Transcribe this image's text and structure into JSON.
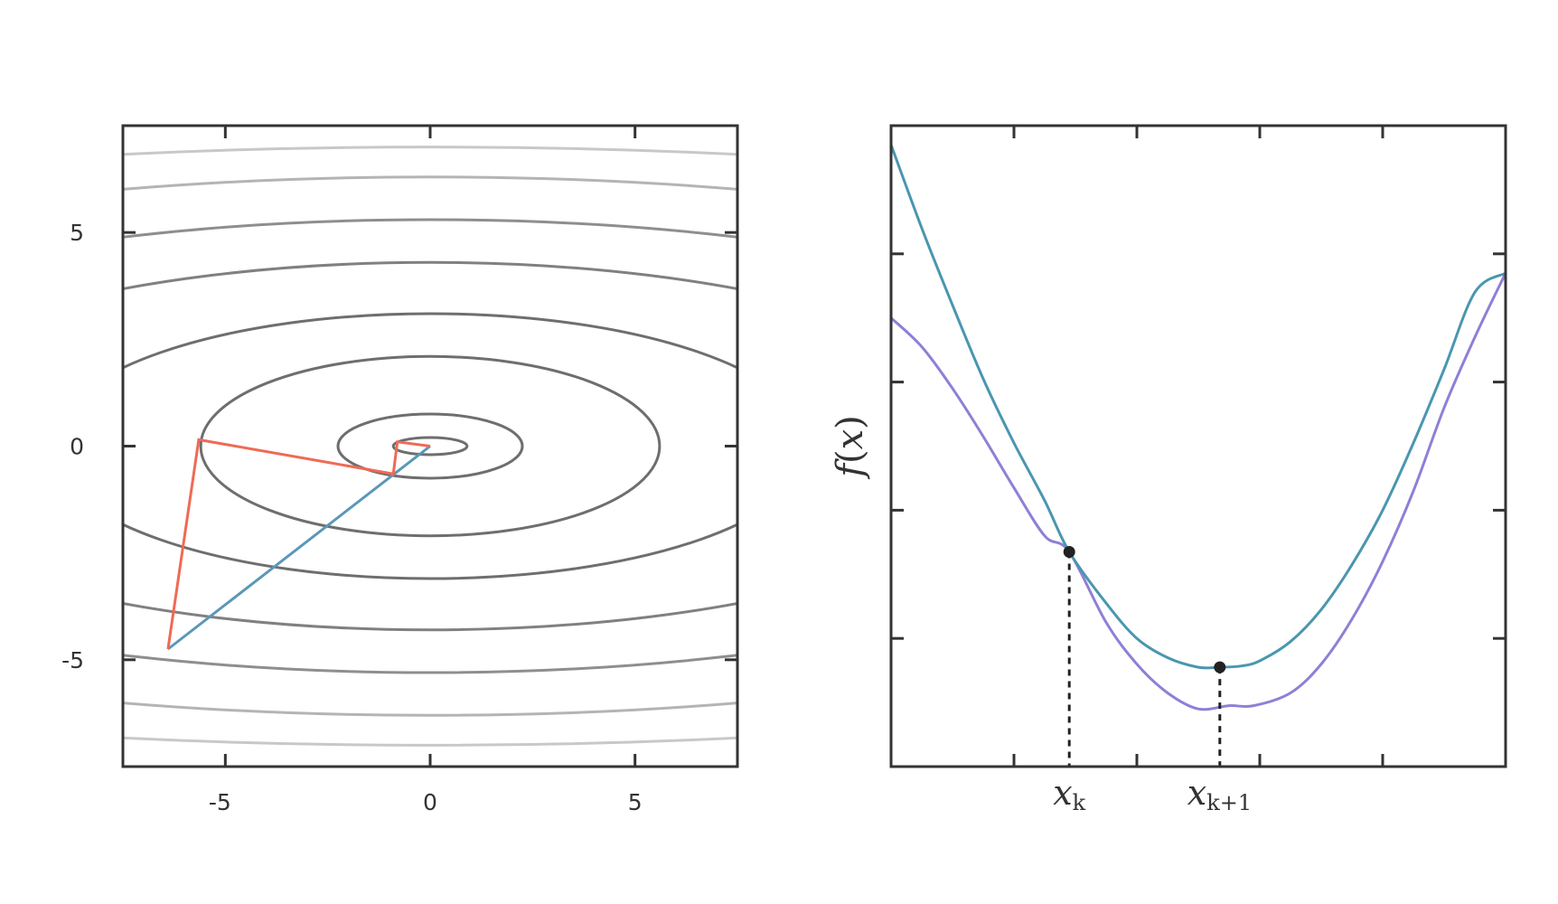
{
  "chart_data": [
    {
      "type": "contour",
      "title": "",
      "xlabel": "",
      "ylabel": "",
      "xlim": [
        -7.5,
        7.5
      ],
      "ylim": [
        -7.5,
        7.5
      ],
      "xticks": [
        -5,
        0,
        5
      ],
      "yticks": [
        5,
        0,
        -5
      ],
      "xtick_labels": [
        "-5",
        "0",
        "5"
      ],
      "ytick_labels": [
        "5",
        "0",
        "-5"
      ],
      "center": [
        0,
        0
      ],
      "contours": [
        {
          "a": 0.9,
          "b": 0.2,
          "color": "#6e6e6e"
        },
        {
          "a": 2.25,
          "b": 0.75,
          "color": "#6e6e6e"
        },
        {
          "a": 5.6,
          "b": 2.1,
          "color": "#6e6e6e"
        },
        {
          "a": 9.3,
          "b": 3.1,
          "color": "#6e6e6e"
        },
        {
          "a": 14.5,
          "b": 4.3,
          "color": "#808080"
        },
        {
          "a": 19.5,
          "b": 5.3,
          "color": "#8e8e8e"
        },
        {
          "a": 25,
          "b": 6.3,
          "color": "#b4b4b4"
        },
        {
          "a": 34,
          "b": 7.0,
          "color": "#c8c8c8"
        },
        {
          "a": 46,
          "b": 7.7,
          "color": "#e0e0e0"
        }
      ],
      "series": [
        {
          "name": "orthogonal-steps",
          "color": "#ef6a55",
          "points": [
            [
              -6.4,
              -4.75
            ],
            [
              -5.65,
              0.15
            ],
            [
              -0.9,
              -0.65
            ],
            [
              -0.8,
              0.1
            ],
            [
              0,
              0
            ]
          ]
        },
        {
          "name": "direct-step",
          "color": "#5b97b8",
          "points": [
            [
              -6.4,
              -4.75
            ],
            [
              0,
              0
            ]
          ]
        }
      ]
    },
    {
      "type": "line",
      "title": "",
      "xlabel": "",
      "ylabel": "f(x)",
      "xlim": [
        0,
        10
      ],
      "ylim": [
        0,
        10
      ],
      "xticks": [
        2,
        4,
        6,
        8
      ],
      "yticks": [
        2,
        4,
        6,
        8
      ],
      "series": [
        {
          "name": "f",
          "color": "#4a96b0",
          "x": [
            0,
            0.5,
            1,
            1.5,
            2,
            2.5,
            2.9,
            3.5,
            4,
            4.5,
            5,
            5.35,
            5.7,
            6,
            6.5,
            7,
            7.5,
            8,
            8.5,
            9,
            9.5,
            10
          ],
          "y": [
            9.7,
            8.4,
            7.2,
            6.05,
            5.05,
            4.15,
            3.35,
            2.55,
            2.0,
            1.7,
            1.55,
            1.55,
            1.57,
            1.65,
            1.95,
            2.45,
            3.15,
            4.0,
            5.05,
            6.2,
            7.4,
            7.7
          ]
        },
        {
          "name": "quadratic-model",
          "color": "#8f7fd6",
          "x": [
            0,
            0.5,
            1,
            1.5,
            2,
            2.5,
            2.9,
            3.5,
            4,
            4.5,
            5,
            5.5,
            5.9,
            6.5,
            7,
            7.5,
            8,
            8.5,
            9,
            9.5,
            10
          ],
          "y": [
            7.0,
            6.55,
            5.9,
            5.15,
            4.35,
            3.6,
            3.35,
            2.25,
            1.6,
            1.15,
            0.9,
            0.95,
            0.95,
            1.15,
            1.6,
            2.3,
            3.2,
            4.3,
            5.6,
            6.7,
            7.7
          ]
        }
      ],
      "points": [
        {
          "label": "x_k",
          "x": 2.9,
          "y": 3.35
        },
        {
          "label": "x_k+1",
          "x": 5.35,
          "y": 1.55
        }
      ],
      "annotations": {
        "xk_main": "x",
        "xk_sub": "k",
        "xk1_main": "x",
        "xk1_sub": "k+1",
        "ylabel_f": "f",
        "ylabel_open": "(",
        "ylabel_x": "x",
        "ylabel_close": ")"
      }
    }
  ]
}
